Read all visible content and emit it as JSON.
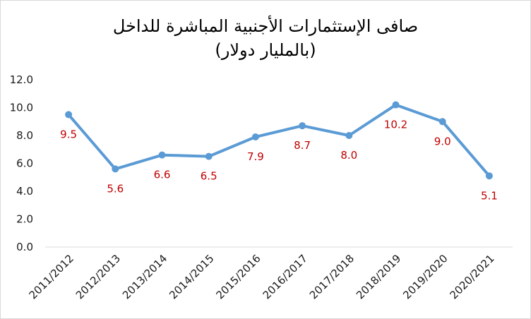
{
  "chart_data": {
    "type": "line",
    "title_line1": "صافى الإستثمارات الأجنبية المباشرة للداخل",
    "title_line2": "(بالمليار دولار)",
    "categories": [
      "2011/2012",
      "2012/2013",
      "2013/2014",
      "2014/2015",
      "2015/2016",
      "2016/2017",
      "2017/2018",
      "2018/2019",
      "2019/2020",
      "2020/2021"
    ],
    "series": [
      {
        "values": [
          9.5,
          5.6,
          6.6,
          6.5,
          7.9,
          8.7,
          8.0,
          10.2,
          9.0,
          5.1
        ]
      }
    ],
    "data_labels": [
      "9.5",
      "5.6",
      "6.6",
      "6.5",
      "7.9",
      "8.7",
      "8.0",
      "10.2",
      "9.0",
      "5.1"
    ],
    "y_ticks": [
      "0.0",
      "2.0",
      "4.0",
      "6.0",
      "8.0",
      "10.0",
      "12.0"
    ],
    "ylim": [
      0,
      12
    ],
    "grid": false,
    "legend": "none",
    "colors": {
      "line": "#5b9bd5",
      "data_label": "#c00000",
      "axis": "#d9d9d9",
      "text": "#1a1a1a"
    }
  }
}
